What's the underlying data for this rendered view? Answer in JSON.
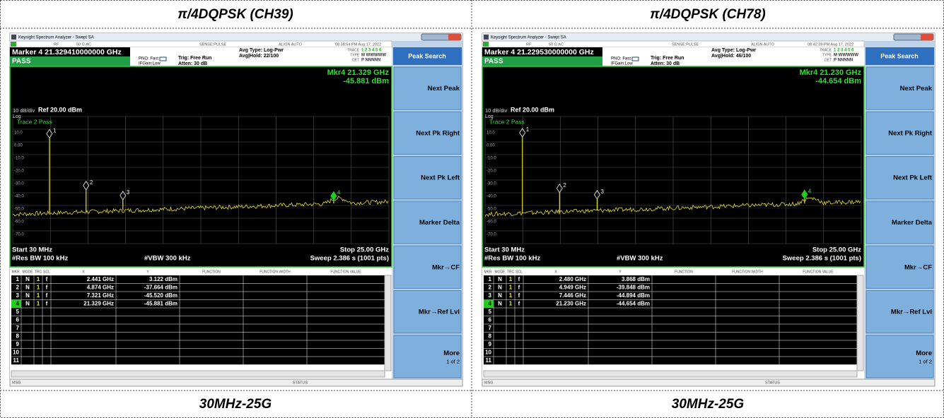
{
  "panels": [
    {
      "title": "π/4DQPSK (CH39)",
      "footer": "30MHz-25G",
      "screen": {
        "window_title": "Keysight Spectrum Analyzer - Swept SA",
        "status": [
          "RF",
          "50 Ω  AC",
          "SENSE:PULSE",
          "ALIGN AUTO",
          "08:38:54 PM Aug 17, 2022"
        ],
        "marker_readout": "Marker 4 21.329410000000 GHz",
        "pass": "PASS",
        "pno": "PNO: Fast",
        "ifgain": "IFGain:Low",
        "trig": "Trig: Free Run",
        "atten": "Atten: 30 dB",
        "avg_type": "Avg Type: Log-Pwr",
        "avg_hold": "Avg|Hold: 22/100",
        "trace_keys": [
          "TRACE",
          "TYPE",
          "DET"
        ],
        "trace_vals": [
          "1 2 3 4 5 6",
          "M WWWWW",
          "P NNNNN"
        ],
        "mkr_freq": "Mkr4 21.329 GHz",
        "mkr_amp": "-45.881 dBm",
        "scale": "10 dB/div",
        "log": "Log",
        "ref": "Ref 20.00 dBm",
        "trace_label": "Trace 2 Pass",
        "ylabels": [
          "10.0",
          "0.00",
          "-10.0",
          "-20.0",
          "-30.0",
          "-40.0",
          "-50.0",
          "-60.0",
          "-70.0"
        ],
        "start": "Start 30 MHz",
        "stop": "Stop 25.00 GHz",
        "rbw": "#Res BW 100 kHz",
        "vbw": "#VBW 300 kHz",
        "sweep": "Sweep  2.386 s (1001 pts)",
        "table_headers": [
          "MKR",
          "MODE",
          "TRC",
          "SCL",
          "X",
          "Y",
          "FUNCTION",
          "FUNCTION WIDTH",
          "FUNCTION VALUE"
        ],
        "rows": [
          [
            "1",
            "N",
            "1",
            "f",
            "2.441 GHz",
            "3.122 dBm"
          ],
          [
            "2",
            "N",
            "1",
            "f",
            "4.874 GHz",
            "-37.664 dBm"
          ],
          [
            "3",
            "N",
            "1",
            "f",
            "7.321 GHz",
            "-45.520 dBm"
          ],
          [
            "4",
            "N",
            "1",
            "f",
            "21.329 GHz",
            "-45.881 dBm"
          ],
          [
            "5"
          ],
          [
            "6"
          ],
          [
            "7"
          ],
          [
            "8"
          ],
          [
            "9"
          ],
          [
            "10"
          ],
          [
            "11"
          ]
        ],
        "softkeys_title": "Peak Search",
        "softkeys": [
          "Next Peak",
          "Next Pk Right",
          "Next Pk Left",
          "Marker Delta",
          "Mkr→CF",
          "Mkr→Ref Lvl",
          "More"
        ],
        "more_sub": "1 of 2",
        "msg": "MSG",
        "status_bar": "STATUS"
      }
    },
    {
      "title": "π/4DQPSK (CH78)",
      "footer": "30MHz-25G",
      "screen": {
        "window_title": "Keysight Spectrum Analyzer - Swept SA",
        "status": [
          "RF",
          "50 Ω  AC",
          "SENSE:PULSE",
          "ALIGN AUTO",
          "08:42:39 PM Aug 17, 2022"
        ],
        "marker_readout": "Marker 4 21.229530000000 GHz",
        "pass": "PASS",
        "pno": "PNO: Fast",
        "ifgain": "IFGain:Low",
        "trig": "Trig: Free Run",
        "atten": "Atten: 30 dB",
        "avg_type": "Avg Type: Log-Pwr",
        "avg_hold": "Avg|Hold: 46/100",
        "trace_keys": [
          "TRACE",
          "TYPE",
          "DET"
        ],
        "trace_vals": [
          "1 2 3 4 5 6",
          "M WWWWW",
          "P NNNNN"
        ],
        "mkr_freq": "Mkr4 21.230 GHz",
        "mkr_amp": "-44.654 dBm",
        "scale": "10 dB/div",
        "log": "Log",
        "ref": "Ref 20.00 dBm",
        "trace_label": "Trace 2 Pass",
        "ylabels": [
          "10.0",
          "0.00",
          "-10.0",
          "-20.0",
          "-30.0",
          "-40.0",
          "-50.0",
          "-60.0",
          "-70.0"
        ],
        "start": "Start 30 MHz",
        "stop": "Stop 25.00 GHz",
        "rbw": "#Res BW 100 kHz",
        "vbw": "#VBW 300 kHz",
        "sweep": "Sweep  2.386 s (1001 pts)",
        "table_headers": [
          "MKR",
          "MODE",
          "TRC",
          "SCL",
          "X",
          "Y",
          "FUNCTION",
          "FUNCTION WIDTH",
          "FUNCTION VALUE"
        ],
        "rows": [
          [
            "1",
            "N",
            "1",
            "f",
            "2.480 GHz",
            "3.868 dBm"
          ],
          [
            "2",
            "N",
            "1",
            "f",
            "4.949 GHz",
            "-39.848 dBm"
          ],
          [
            "3",
            "N",
            "1",
            "f",
            "7.446 GHz",
            "-44.894 dBm"
          ],
          [
            "4",
            "N",
            "1",
            "f",
            "21.230 GHz",
            "-44.654 dBm"
          ],
          [
            "5"
          ],
          [
            "6"
          ],
          [
            "7"
          ],
          [
            "8"
          ],
          [
            "9"
          ],
          [
            "10"
          ],
          [
            "11"
          ]
        ],
        "softkeys_title": "Peak Search",
        "softkeys": [
          "Next Peak",
          "Next Pk Right",
          "Next Pk Left",
          "Marker Delta",
          "Mkr→CF",
          "Mkr→Ref Lvl",
          "More"
        ],
        "more_sub": "1 of 2",
        "msg": "MSG",
        "status_bar": "STATUS"
      }
    }
  ]
}
